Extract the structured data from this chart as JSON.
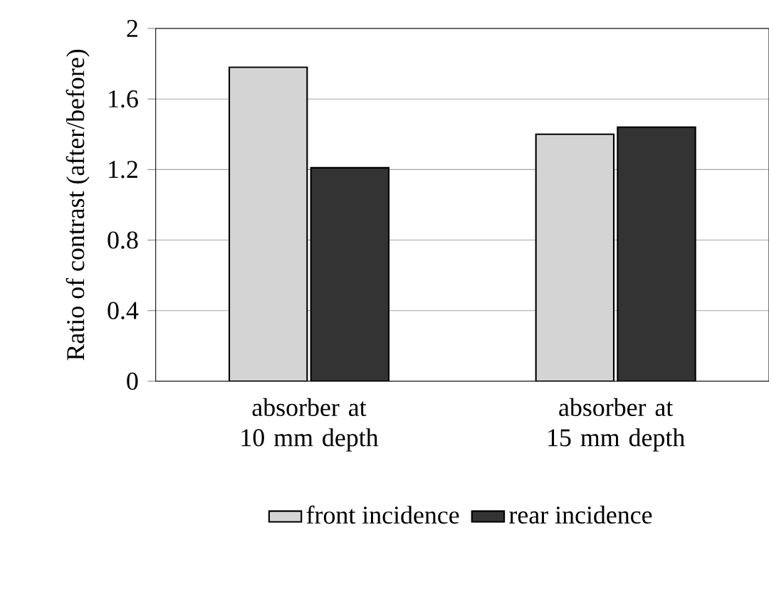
{
  "chart_data": {
    "type": "bar",
    "ylabel": "Ratio of contrast (after/before)",
    "categories": [
      "absorber at 10 mm depth",
      "absorber at 15 mm depth"
    ],
    "series": [
      {
        "name": "front incidence",
        "color": "#d4d4d4",
        "values": [
          1.78,
          1.4
        ]
      },
      {
        "name": "rear incidence",
        "color": "#333333",
        "values": [
          1.21,
          1.44
        ]
      }
    ],
    "ylim": [
      0,
      2
    ],
    "yticks": [
      0,
      0.4,
      0.8,
      1.2,
      1.6,
      2
    ],
    "grid": "y",
    "legend": "bottom"
  }
}
